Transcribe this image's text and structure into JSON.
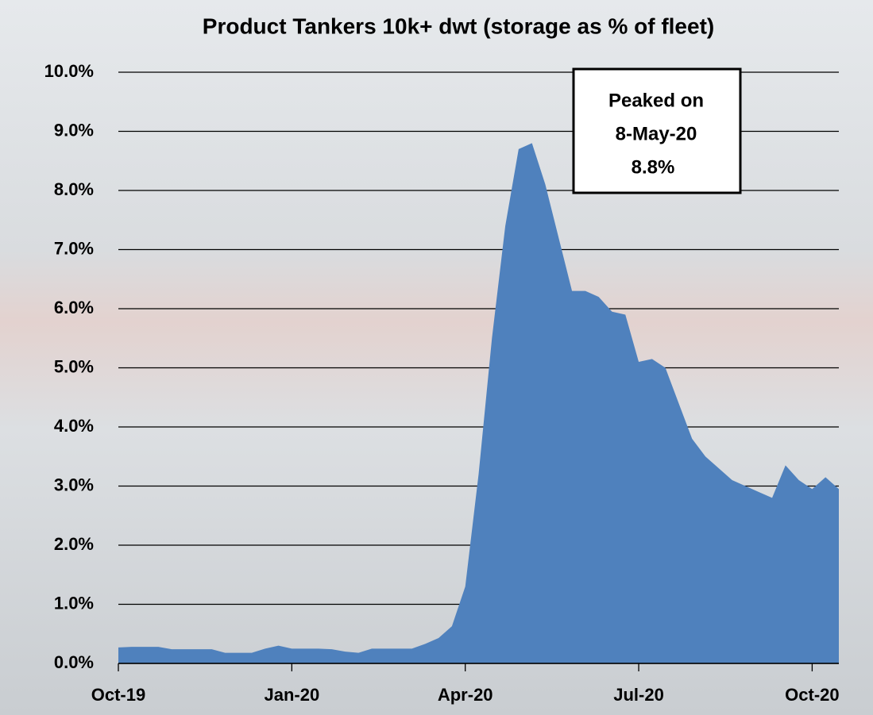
{
  "chart_data": {
    "type": "area",
    "title": "Product Tankers 10k+ dwt (storage as % of fleet)",
    "categories": [
      "Oct-19",
      null,
      null,
      null,
      null,
      null,
      null,
      null,
      null,
      null,
      null,
      null,
      null,
      "Jan-20",
      null,
      null,
      null,
      null,
      null,
      null,
      null,
      null,
      null,
      null,
      null,
      null,
      "Apr-20",
      null,
      null,
      null,
      null,
      null,
      null,
      null,
      null,
      null,
      null,
      null,
      null,
      "Jul-20",
      null,
      null,
      null,
      null,
      null,
      null,
      null,
      null,
      null,
      null,
      null,
      null,
      "Oct-20",
      null,
      null
    ],
    "values": [
      0.27,
      0.28,
      0.28,
      0.28,
      0.24,
      0.24,
      0.24,
      0.24,
      0.18,
      0.18,
      0.18,
      0.25,
      0.3,
      0.25,
      0.25,
      0.25,
      0.24,
      0.2,
      0.18,
      0.25,
      0.25,
      0.25,
      0.25,
      0.33,
      0.43,
      0.63,
      1.3,
      3.2,
      5.5,
      7.4,
      8.7,
      8.8,
      8.1,
      7.2,
      6.3,
      6.3,
      6.2,
      5.95,
      5.9,
      5.1,
      5.15,
      5.0,
      4.4,
      3.8,
      3.5,
      3.3,
      3.1,
      3.0,
      2.9,
      2.8,
      3.35,
      3.1,
      2.95,
      3.15,
      2.95
    ],
    "color": "#4f81bd",
    "ylim": [
      0,
      10
    ],
    "yticks": [
      {
        "value": 0,
        "label": "0.0%"
      },
      {
        "value": 1,
        "label": "1.0%"
      },
      {
        "value": 2,
        "label": "2.0%"
      },
      {
        "value": 3,
        "label": "3.0%"
      },
      {
        "value": 4,
        "label": "4.0%"
      },
      {
        "value": 5,
        "label": "5.0%"
      },
      {
        "value": 6,
        "label": "6.0%"
      },
      {
        "value": 7,
        "label": "7.0%"
      },
      {
        "value": 8,
        "label": "8.0%"
      },
      {
        "value": 9,
        "label": "9.0%"
      },
      {
        "value": 10,
        "label": "10.0%"
      }
    ],
    "grid": true,
    "annotation": [
      "Peaked on",
      "8-May-20",
      "8.8%"
    ]
  }
}
